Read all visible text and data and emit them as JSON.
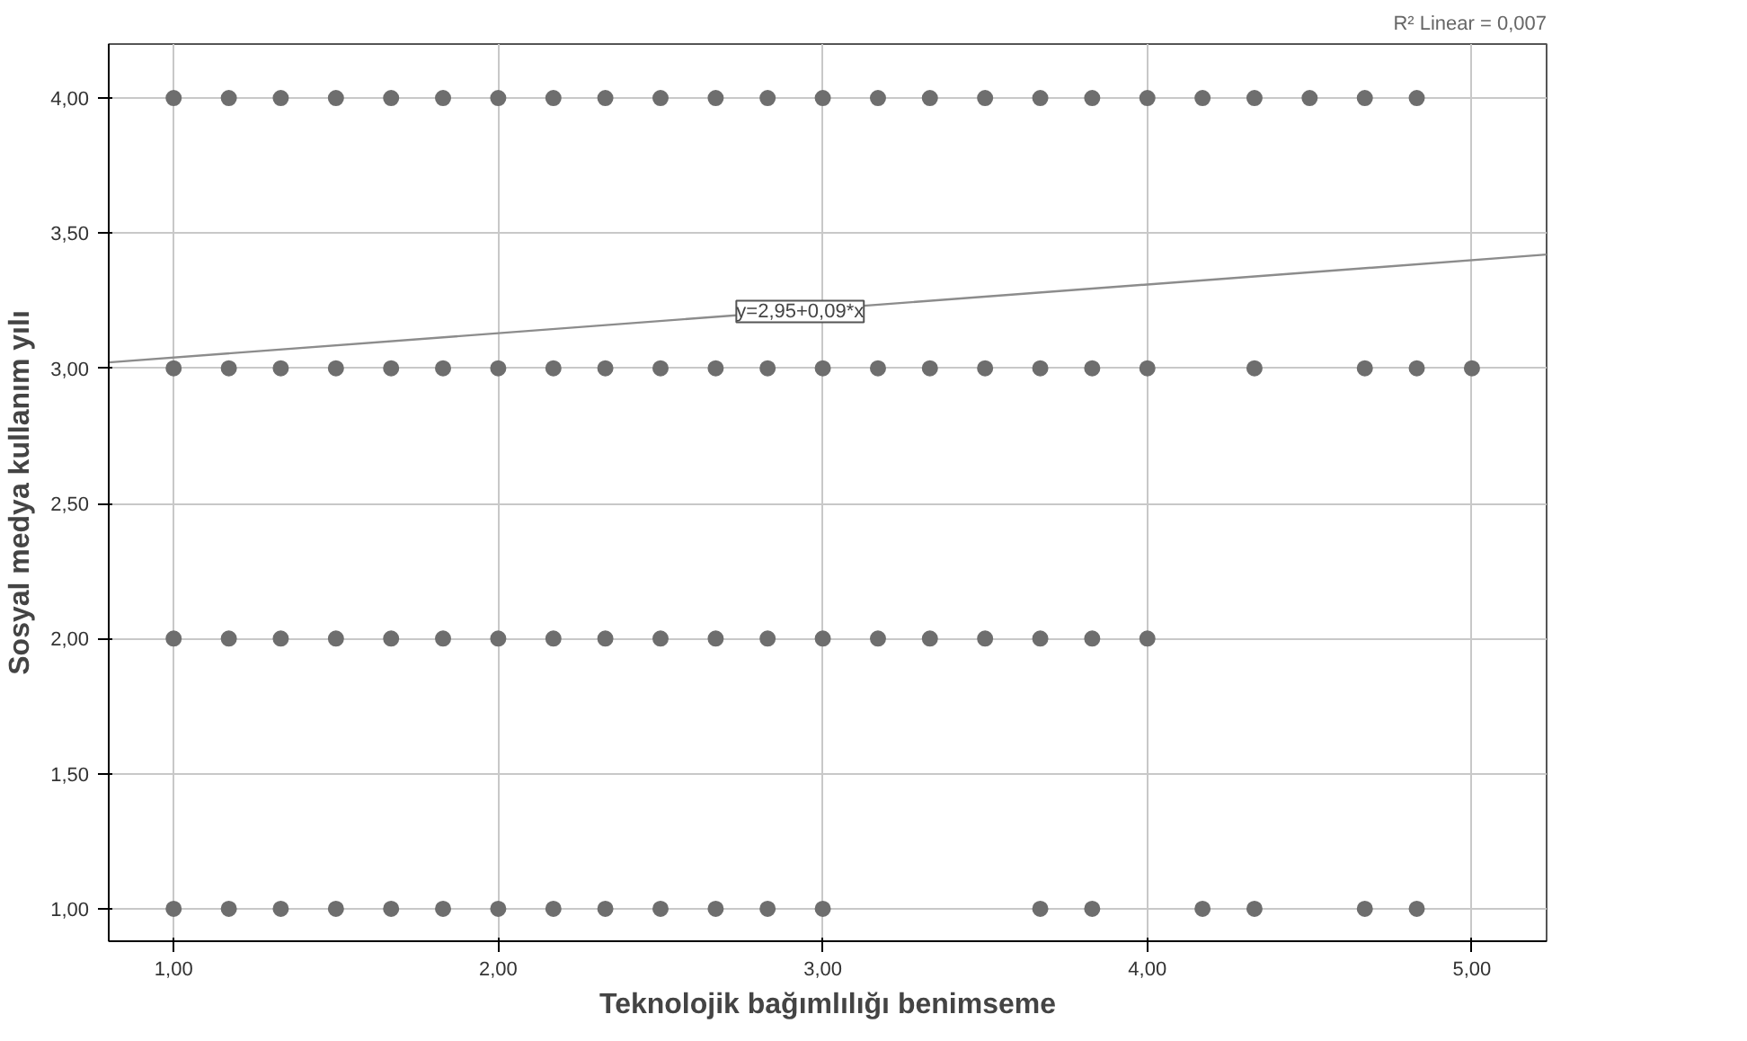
{
  "chart_data": {
    "type": "scatter",
    "xlabel": "Teknolojik bağımlılığı benimseme",
    "ylabel": "Sosyal medya kullanım yılı",
    "xlim": [
      0.8,
      5.23
    ],
    "ylim": [
      0.88,
      4.2
    ],
    "xticks": [
      {
        "value": 1,
        "label": "1,00"
      },
      {
        "value": 2,
        "label": "2,00"
      },
      {
        "value": 3,
        "label": "3,00"
      },
      {
        "value": 4,
        "label": "4,00"
      },
      {
        "value": 5,
        "label": "5,00"
      }
    ],
    "yticks": [
      {
        "value": 1,
        "label": "1,00"
      },
      {
        "value": 1.5,
        "label": "1,50"
      },
      {
        "value": 2,
        "label": "2,00"
      },
      {
        "value": 2.5,
        "label": "2,50"
      },
      {
        "value": 3,
        "label": "3,00"
      },
      {
        "value": 3.5,
        "label": "3,50"
      },
      {
        "value": 4,
        "label": "4,00"
      }
    ],
    "grid": true,
    "marker": "circle",
    "series": [
      {
        "color": "#6e6e6e",
        "x": [
          1.0,
          1.17,
          1.33,
          1.5,
          1.67,
          1.83,
          2.0,
          2.17,
          2.33,
          2.5,
          2.67,
          2.83,
          3.0,
          3.17,
          3.33,
          3.5,
          3.67,
          3.83,
          4.0,
          4.17,
          4.33,
          4.5,
          4.67,
          4.83,
          1.0,
          1.17,
          1.33,
          1.5,
          1.67,
          1.83,
          2.0,
          2.17,
          2.33,
          2.5,
          2.67,
          2.83,
          3.0,
          3.17,
          3.33,
          3.5,
          3.67,
          3.83,
          4.0,
          4.33,
          4.67,
          4.83,
          5.0,
          1.0,
          1.17,
          1.33,
          1.5,
          1.67,
          1.83,
          2.0,
          2.17,
          2.33,
          2.5,
          2.67,
          2.83,
          3.0,
          3.17,
          3.33,
          3.5,
          3.67,
          3.83,
          4.0,
          1.0,
          1.17,
          1.33,
          1.5,
          1.67,
          1.83,
          2.0,
          2.17,
          2.33,
          2.5,
          2.67,
          2.83,
          3.0,
          3.67,
          3.83,
          4.17,
          4.33,
          4.67,
          4.83
        ],
        "values": [
          4,
          4,
          4,
          4,
          4,
          4,
          4,
          4,
          4,
          4,
          4,
          4,
          4,
          4,
          4,
          4,
          4,
          4,
          4,
          4,
          4,
          4,
          4,
          4,
          3,
          3,
          3,
          3,
          3,
          3,
          3,
          3,
          3,
          3,
          3,
          3,
          3,
          3,
          3,
          3,
          3,
          3,
          3,
          3,
          3,
          3,
          3,
          2,
          2,
          2,
          2,
          2,
          2,
          2,
          2,
          2,
          2,
          2,
          2,
          2,
          2,
          2,
          2,
          2,
          2,
          2,
          1,
          1,
          1,
          1,
          1,
          1,
          1,
          1,
          1,
          1,
          1,
          1,
          1,
          1,
          1,
          1,
          1,
          1,
          1
        ]
      },
      {
        "type": "line",
        "marker": "none",
        "color": "#8c8c8c",
        "x": [
          0.8,
          5.23
        ],
        "values": [
          3.022,
          3.421
        ]
      }
    ],
    "annotations": [
      {
        "text": "y=2,95+0,09*x",
        "x": 2.93,
        "y": 3.21
      },
      "R² Linear = 0,007"
    ]
  }
}
